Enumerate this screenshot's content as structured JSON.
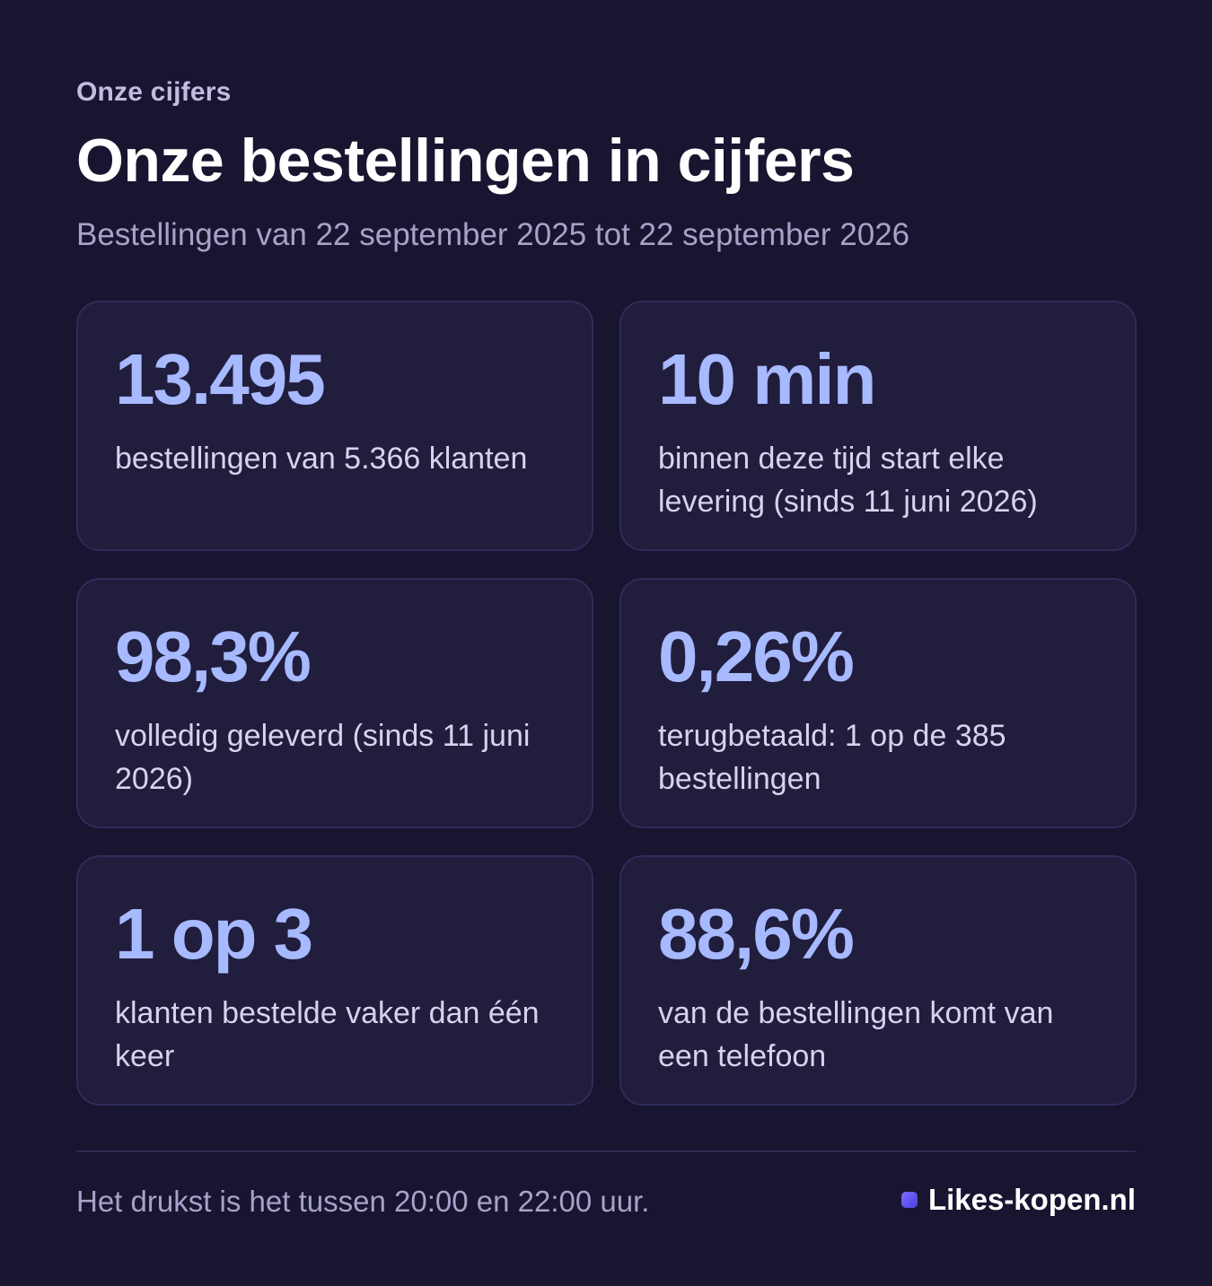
{
  "header": {
    "eyebrow": "Onze cijfers",
    "title": "Onze bestellingen in cijfers",
    "subtitle": "Bestellingen van 22 september 2025 tot 22 september 2026"
  },
  "stats": [
    {
      "value": "13.495",
      "description": "bestellingen van 5.366 klanten"
    },
    {
      "value": "10 min",
      "description": "binnen deze tijd start elke levering (sinds 11 juni 2026)"
    },
    {
      "value": "98,3%",
      "description": "volledig geleverd (sinds 11 juni 2026)"
    },
    {
      "value": "0,26%",
      "description": "terugbetaald: 1 op de 385 bestellingen"
    },
    {
      "value": "1 op 3",
      "description": "klanten bestelde vaker dan één keer"
    },
    {
      "value": "88,6%",
      "description": "van de bestellingen komt van een telefoon"
    }
  ],
  "footer": {
    "note": "Het drukst is het tussen 20:00 en 22:00 uur.",
    "brand": "Likes-kopen.nl",
    "brand_icon": "square-dot-icon"
  },
  "colors": {
    "background": "#171530",
    "card": "#201d3d",
    "accent": "#a7b9ff",
    "brand_dot": "#6a5cff"
  }
}
